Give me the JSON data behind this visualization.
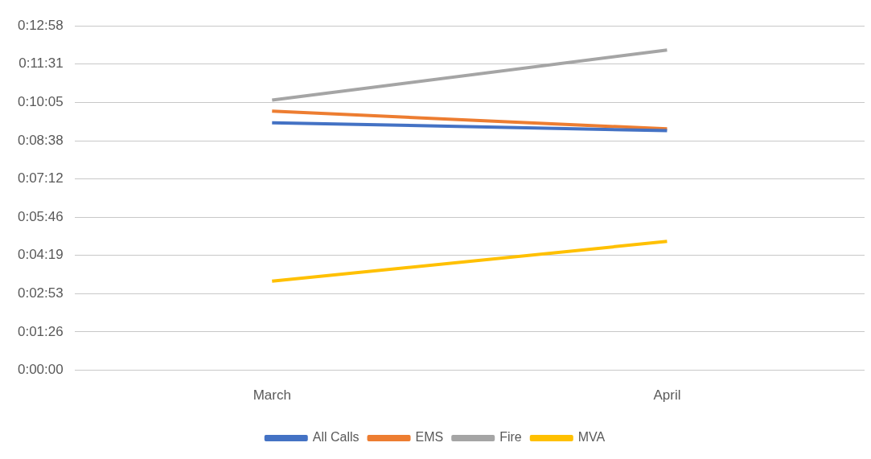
{
  "chart_data": {
    "type": "line",
    "categories": [
      "March",
      "April"
    ],
    "series": [
      {
        "name": "All Calls",
        "color": "#4472c4",
        "values": [
          559,
          541
        ]
      },
      {
        "name": "EMS",
        "color": "#ed7d31",
        "values": [
          585,
          545
        ]
      },
      {
        "name": "Fire",
        "color": "#a5a5a5",
        "values": [
          610,
          723
        ]
      },
      {
        "name": "MVA",
        "color": "#ffc000",
        "values": [
          201,
          291
        ]
      }
    ],
    "ylim": [
      0,
      777.6
    ],
    "yticks": [
      {
        "value": 0,
        "label": "0:00:00"
      },
      {
        "value": 86.4,
        "label": "0:01:26"
      },
      {
        "value": 172.8,
        "label": "0:02:53"
      },
      {
        "value": 259.2,
        "label": "0:04:19"
      },
      {
        "value": 345.6,
        "label": "0:05:46"
      },
      {
        "value": 432,
        "label": "0:07:12"
      },
      {
        "value": 518.4,
        "label": "0:08:38"
      },
      {
        "value": 604.8,
        "label": "0:10:05"
      },
      {
        "value": 691.2,
        "label": "0:11:31"
      },
      {
        "value": 777.6,
        "label": "0:12:58"
      }
    ],
    "grid": "y",
    "legend": "bottom",
    "marker": "none",
    "line_style": "solid"
  }
}
